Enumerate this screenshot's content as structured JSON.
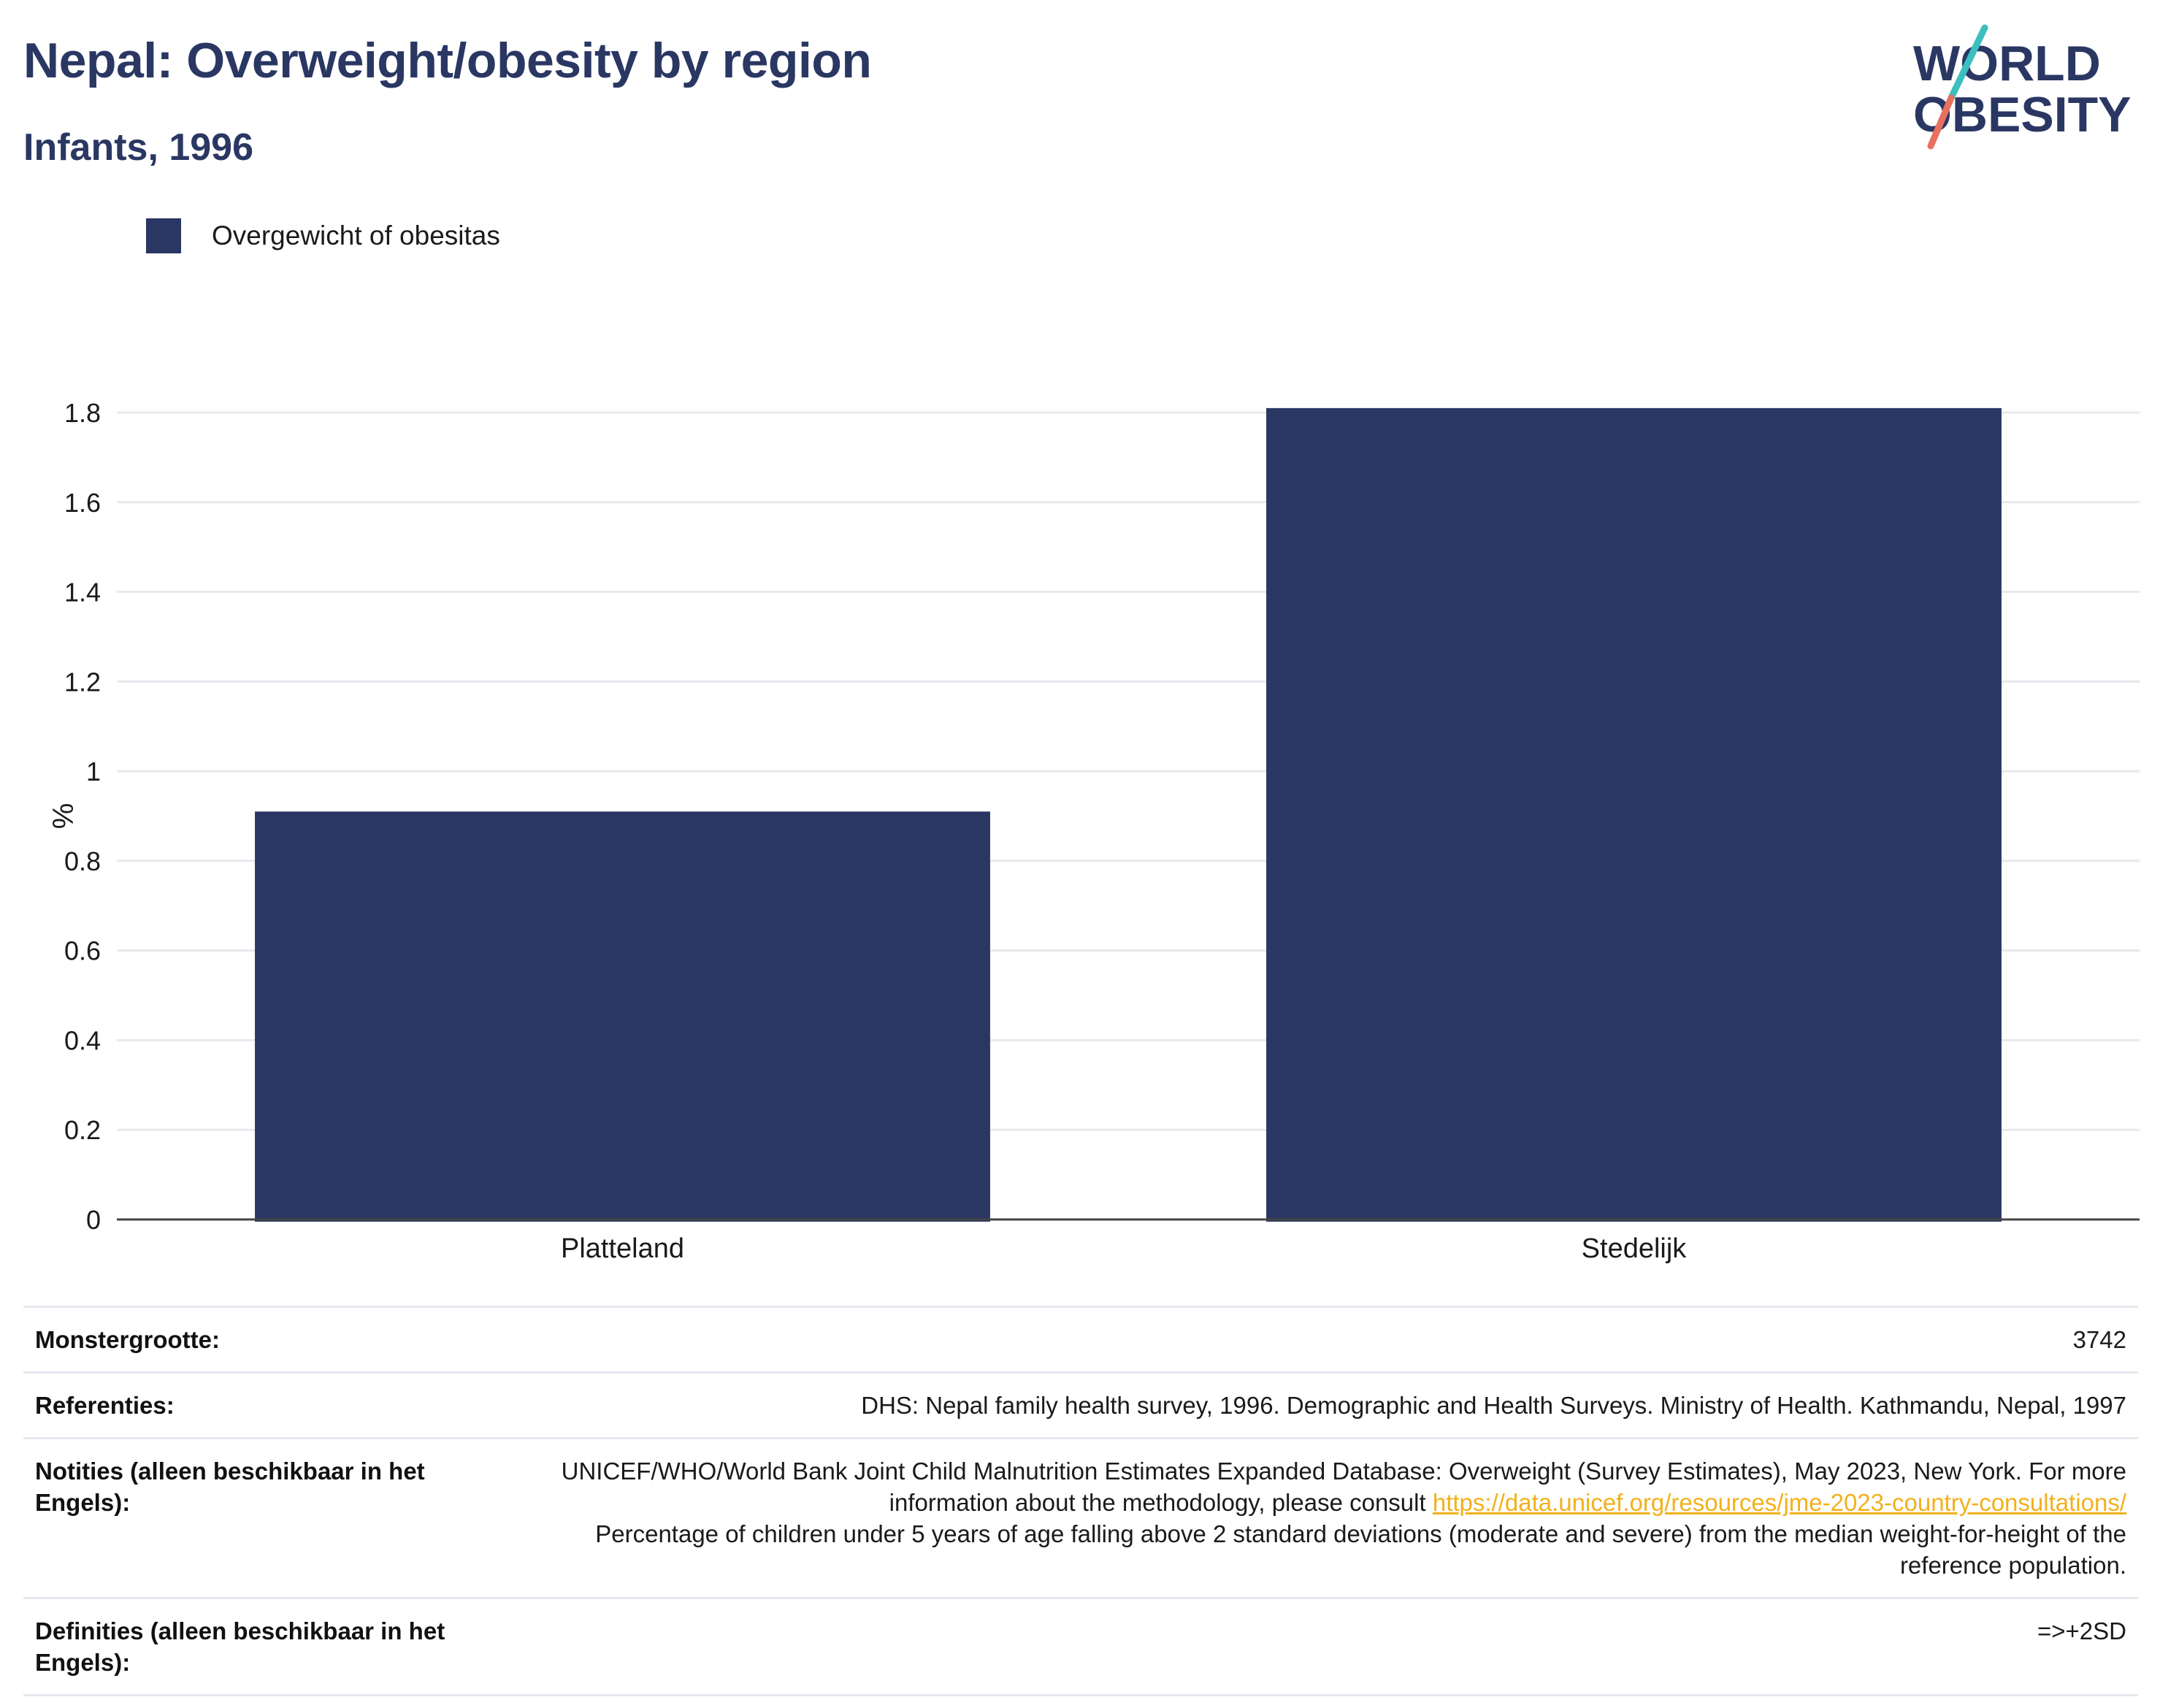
{
  "header": {
    "title": "Nepal: Overweight/obesity by region",
    "subtitle": "Infants, 1996"
  },
  "logo": {
    "line1": "WORLD",
    "line2": "OBESITY"
  },
  "colors": {
    "bar": "#2a3763",
    "title": "#2a3763",
    "link": "#f2b11b",
    "logo_teal": "#3bbfbf",
    "logo_coral": "#e8705f"
  },
  "chart_data": {
    "type": "bar",
    "categories": [
      "Platteland",
      "Stedelijk"
    ],
    "series": [
      {
        "name": "Overgewicht of obesitas",
        "values": [
          0.91,
          1.81
        ]
      }
    ],
    "ylabel": "%",
    "xlabel": "",
    "ylim": [
      0,
      1.8
    ],
    "yticks": [
      "0",
      "0.2",
      "0.4",
      "0.6",
      "0.8",
      "1",
      "1.2",
      "1.4",
      "1.6",
      "1.8"
    ],
    "grid": true,
    "legend": "top-left"
  },
  "info": {
    "sample_label": "Monstergrootte:",
    "sample_value": "3742",
    "refs_label": "Referenties:",
    "refs_value": "DHS: Nepal family health survey, 1996. Demographic and Health Surveys. Ministry of Health. Kathmandu, Nepal, 1997",
    "notes_label": "Notities (alleen beschikbaar in het Engels):",
    "notes_text1": "UNICEF/WHO/World Bank Joint Child Malnutrition Estimates Expanded Database: Overweight (Survey Estimates), May 2023, New York. For more information about the methodology, please consult ",
    "notes_link": "https://data.unicef.org/resources/jme-2023-country-consultations/",
    "notes_text2": "Percentage of children under 5 years of age falling above 2 standard deviations (moderate and severe) from the median weight-for-height of the reference population.",
    "defs_label": "Definities (alleen beschikbaar in het Engels):",
    "defs_value": "=>+2SD"
  }
}
